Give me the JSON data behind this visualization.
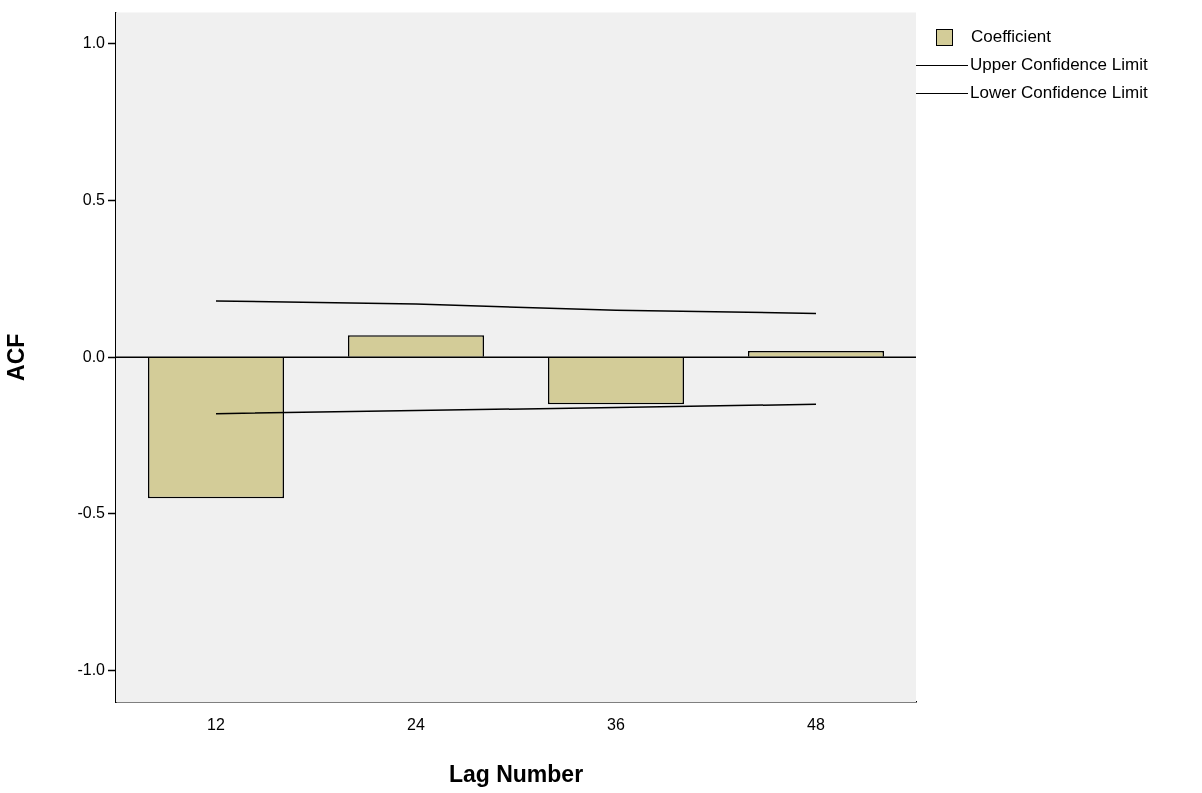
{
  "chart_data": {
    "type": "bar",
    "xlabel": "Lag Number",
    "ylabel": "ACF",
    "categories": [
      "12",
      "24",
      "36",
      "48"
    ],
    "series": [
      {
        "name": "Coefficient",
        "color": "#d3cc98",
        "values": [
          -0.45,
          0.07,
          -0.15,
          0.02
        ]
      },
      {
        "name": "Upper Confidence Limit",
        "type": "line",
        "color": "#000000",
        "values": [
          0.18,
          0.17,
          0.15,
          0.14
        ]
      },
      {
        "name": "Lower Confidence Limit",
        "type": "line",
        "color": "#000000",
        "values": [
          -0.18,
          -0.17,
          -0.16,
          -0.15
        ]
      }
    ],
    "ylim": [
      -1.1,
      1.1
    ],
    "yticks": [
      {
        "value": -1,
        "label": "-1.0"
      },
      {
        "value": -0.5,
        "label": "-0.5"
      },
      {
        "value": 0,
        "label": "0.0"
      },
      {
        "value": 0.5,
        "label": "0.5"
      },
      {
        "value": 1,
        "label": "1.0"
      }
    ],
    "ref_lines": [
      {
        "axis": "y",
        "value": 0,
        "color": "#000000"
      }
    ],
    "grid": false,
    "legend": "top right",
    "marker": "none"
  }
}
